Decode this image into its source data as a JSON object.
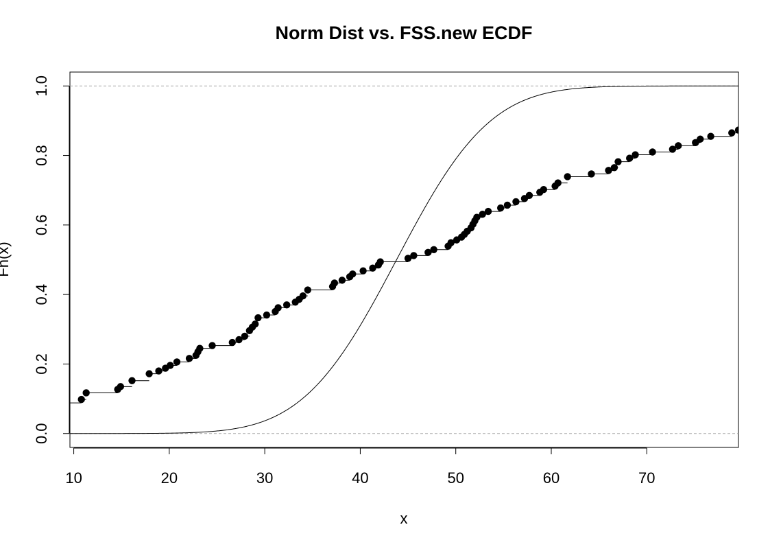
{
  "chart_data": {
    "type": "line",
    "title": "Norm Dist vs. FSS.new ECDF",
    "xlabel": "x",
    "ylabel": "Fn(x)",
    "xlim": [
      9.6,
      79.6
    ],
    "ylim": [
      -0.04,
      1.04
    ],
    "x_ticks": [
      10,
      20,
      30,
      40,
      50,
      60,
      70
    ],
    "y_ticks": [
      0.0,
      0.2,
      0.4,
      0.6,
      0.8,
      1.0
    ],
    "x_tick_labels": [
      "10",
      "20",
      "30",
      "40",
      "50",
      "60",
      "70"
    ],
    "y_tick_labels": [
      "0.0",
      "0.2",
      "0.4",
      "0.6",
      "0.8",
      "1.0"
    ],
    "grid": false,
    "reference_lines_y": [
      0.0,
      1.0
    ],
    "colors": {
      "line": "#000000",
      "points": "#000000",
      "reference": "#aaaaaa"
    },
    "series": [
      {
        "kind": "ecdf-step",
        "start_level": 0.088,
        "points": [
          [
            10.8,
            0.098
          ],
          [
            11.3,
            0.117
          ],
          [
            14.6,
            0.127
          ],
          [
            14.9,
            0.135
          ],
          [
            16.1,
            0.152
          ],
          [
            17.9,
            0.172
          ],
          [
            18.9,
            0.18
          ],
          [
            19.6,
            0.188
          ],
          [
            20.1,
            0.196
          ],
          [
            20.8,
            0.206
          ],
          [
            22.1,
            0.216
          ],
          [
            22.8,
            0.225
          ],
          [
            23.0,
            0.235
          ],
          [
            23.2,
            0.245
          ],
          [
            24.5,
            0.253
          ],
          [
            26.6,
            0.262
          ],
          [
            27.3,
            0.27
          ],
          [
            27.9,
            0.28
          ],
          [
            28.4,
            0.296
          ],
          [
            28.7,
            0.306
          ],
          [
            29.0,
            0.315
          ],
          [
            29.3,
            0.333
          ],
          [
            30.2,
            0.341
          ],
          [
            31.1,
            0.351
          ],
          [
            31.4,
            0.362
          ],
          [
            32.3,
            0.37
          ],
          [
            33.2,
            0.378
          ],
          [
            33.6,
            0.386
          ],
          [
            34.0,
            0.396
          ],
          [
            34.5,
            0.413
          ],
          [
            37.1,
            0.423
          ],
          [
            37.3,
            0.433
          ],
          [
            38.1,
            0.441
          ],
          [
            38.9,
            0.451
          ],
          [
            39.2,
            0.459
          ],
          [
            40.3,
            0.468
          ],
          [
            41.3,
            0.476
          ],
          [
            41.9,
            0.485
          ],
          [
            42.1,
            0.494
          ],
          [
            45.0,
            0.504
          ],
          [
            45.6,
            0.512
          ],
          [
            47.1,
            0.521
          ],
          [
            47.7,
            0.529
          ],
          [
            49.2,
            0.539
          ],
          [
            49.5,
            0.549
          ],
          [
            50.1,
            0.557
          ],
          [
            50.6,
            0.565
          ],
          [
            50.9,
            0.573
          ],
          [
            51.2,
            0.582
          ],
          [
            51.6,
            0.592
          ],
          [
            51.8,
            0.602
          ],
          [
            52.0,
            0.612
          ],
          [
            52.2,
            0.622
          ],
          [
            52.8,
            0.631
          ],
          [
            53.4,
            0.639
          ],
          [
            54.7,
            0.649
          ],
          [
            55.4,
            0.657
          ],
          [
            56.3,
            0.667
          ],
          [
            57.2,
            0.676
          ],
          [
            57.7,
            0.685
          ],
          [
            58.8,
            0.694
          ],
          [
            59.2,
            0.702
          ],
          [
            60.4,
            0.712
          ],
          [
            60.7,
            0.721
          ],
          [
            61.7,
            0.739
          ],
          [
            64.2,
            0.747
          ],
          [
            66.0,
            0.757
          ],
          [
            66.6,
            0.765
          ],
          [
            67.0,
            0.782
          ],
          [
            68.2,
            0.792
          ],
          [
            68.8,
            0.802
          ],
          [
            70.6,
            0.81
          ],
          [
            72.7,
            0.818
          ],
          [
            73.3,
            0.828
          ],
          [
            75.1,
            0.837
          ],
          [
            75.6,
            0.847
          ],
          [
            76.7,
            0.855
          ],
          [
            78.9,
            0.865
          ],
          [
            79.6,
            0.873
          ]
        ]
      },
      {
        "kind": "normal-cdf",
        "mean": 43.8,
        "sd": 7.7,
        "x_range": [
          9.6,
          79.6
        ]
      }
    ]
  }
}
